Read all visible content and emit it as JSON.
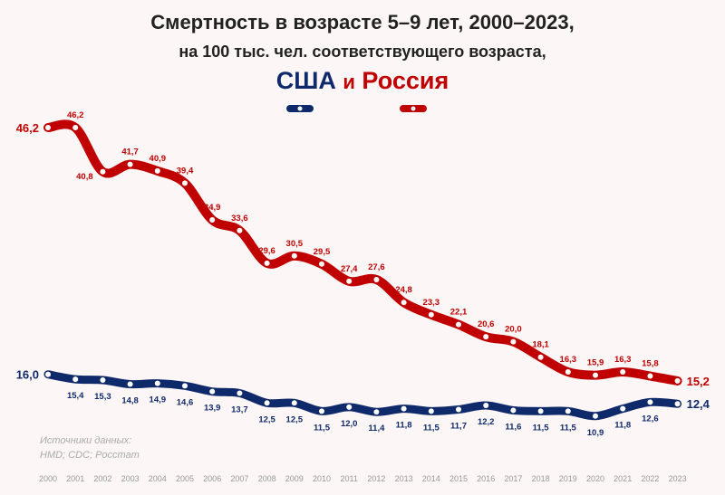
{
  "chart_data": {
    "type": "line",
    "title": "Смертность в возрасте 5–9 лет, 2000–2023,",
    "subtitle": "на 100 тыс. чел. соответствующего возраста,",
    "legend": {
      "usa": "США",
      "and": "и",
      "russia": "Россия",
      "placement": "top-center"
    },
    "x": [
      2000,
      2001,
      2002,
      2003,
      2004,
      2005,
      2006,
      2007,
      2008,
      2009,
      2010,
      2011,
      2012,
      2013,
      2014,
      2015,
      2016,
      2017,
      2018,
      2019,
      2020,
      2021,
      2022,
      2023
    ],
    "series": [
      {
        "name": "Россия",
        "color": "#c00000",
        "values": [
          46.2,
          46.2,
          40.8,
          41.7,
          40.9,
          39.4,
          34.9,
          33.6,
          29.6,
          30.5,
          29.5,
          27.4,
          27.6,
          24.8,
          23.3,
          22.1,
          20.6,
          20.0,
          18.1,
          16.3,
          15.9,
          16.3,
          15.8,
          15.2
        ]
      },
      {
        "name": "США",
        "color": "#0f2a6b",
        "values": [
          16.0,
          15.4,
          15.3,
          14.8,
          14.9,
          14.6,
          13.9,
          13.7,
          12.5,
          12.5,
          11.5,
          12.0,
          11.4,
          11.8,
          11.5,
          11.7,
          12.2,
          11.6,
          11.5,
          11.5,
          10.9,
          11.8,
          12.6,
          12.4
        ]
      }
    ],
    "xlabel": "",
    "ylabel": "",
    "grid": false,
    "source_lines": [
      "Источники данных:",
      "HMD; CDC; Росстат"
    ]
  }
}
